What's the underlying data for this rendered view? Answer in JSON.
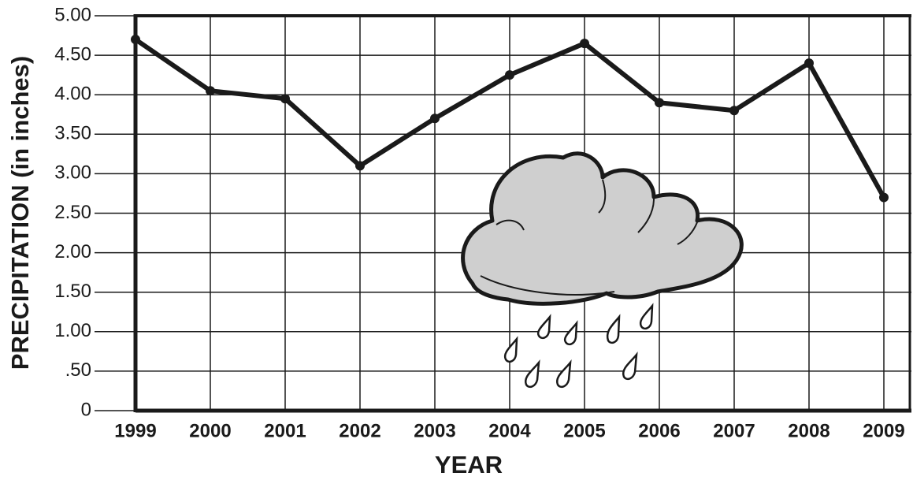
{
  "chart_data": {
    "type": "line",
    "x_label": "YEAR",
    "y_label": "PRECIPITATION (in inches)",
    "categories": [
      "1999",
      "2000",
      "2001",
      "2002",
      "2003",
      "2004",
      "2005",
      "2006",
      "2007",
      "2008",
      "2009"
    ],
    "values": [
      4.7,
      4.05,
      3.95,
      3.1,
      3.7,
      4.25,
      4.65,
      3.9,
      3.8,
      4.4,
      2.7
    ],
    "color": "#1a1a1a",
    "ylim": [
      0,
      5
    ],
    "yticks": [
      0,
      {
        "value": 0.5,
        "label": ".50"
      },
      {
        "value": 1,
        "label": "1.00"
      },
      {
        "value": 1.5,
        "label": "1.50"
      },
      {
        "value": 2,
        "label": "2.00"
      },
      {
        "value": 2.5,
        "label": "2.50"
      },
      {
        "value": 3,
        "label": "3.00"
      },
      {
        "value": 3.5,
        "label": "3.50"
      },
      {
        "value": 4,
        "label": "4.00"
      },
      {
        "value": 4.5,
        "label": "4.50"
      },
      {
        "value": 5,
        "label": "5.00"
      }
    ],
    "grid": true
  }
}
